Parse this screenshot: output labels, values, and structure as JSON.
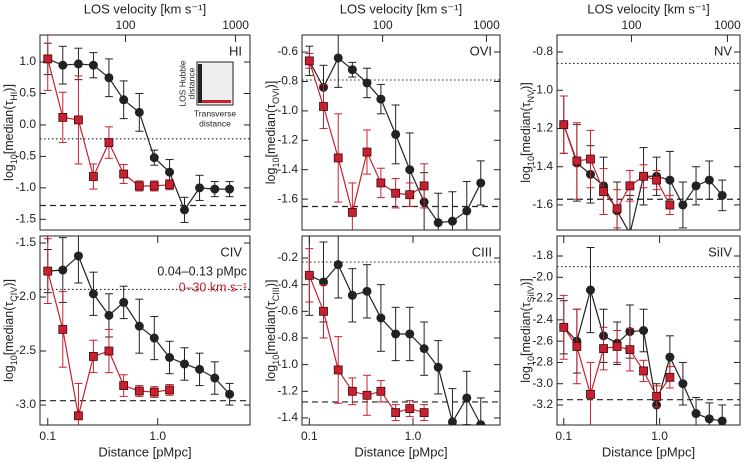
{
  "chart_data": [
    {
      "type": "line",
      "ion": "HI",
      "ylabel": [
        "log",
        "10",
        "[median(τ",
        "HI",
        ")]"
      ],
      "x2label": "LOS velocity [km s⁻¹]",
      "x2lim": [
        16.7,
        1352
      ],
      "x2ticks": [
        100,
        1000
      ],
      "xlim": [
        0.085,
        6.9
      ],
      "xscale": "log",
      "ylim": [
        -1.67,
        1.43
      ],
      "yticks": [
        {
          "value": 1,
          "label": "1.0"
        },
        0.5,
        {
          "value": 0,
          "label": "0.0"
        },
        -0.5,
        {
          "value": -1,
          "label": "-1.0"
        },
        -1.5
      ],
      "hlines": [
        {
          "value": -0.22,
          "style": "dotted"
        },
        {
          "value": -1.28,
          "style": "dashed"
        }
      ],
      "inset": {
        "ylabel": [
          "LOS Hubble",
          "distance"
        ],
        "xlabel": [
          "Transverse",
          "distance"
        ]
      },
      "series": [
        {
          "color": "#222222",
          "marker": "circle",
          "x": [
            0.1,
            0.137,
            0.19,
            0.26,
            0.36,
            0.49,
            0.68,
            0.93,
            1.28,
            1.75,
            2.4,
            3.3,
            4.5
          ],
          "values": [
            1.05,
            0.95,
            0.97,
            0.95,
            0.75,
            0.4,
            0.2,
            -0.52,
            -0.75,
            -1.35,
            -1.0,
            -1.02,
            -1.02
          ],
          "errors": [
            0.25,
            0.3,
            0.25,
            0.2,
            0.3,
            0.3,
            0.3,
            0.12,
            0.2,
            0.2,
            0.2,
            0.12,
            0.12
          ]
        },
        {
          "color": "#c8202f",
          "marker": "square",
          "x": [
            0.1,
            0.137,
            0.19,
            0.26,
            0.36,
            0.49,
            0.68,
            0.93,
            1.28
          ],
          "values": [
            1.05,
            0.12,
            0.08,
            -0.82,
            -0.28,
            -0.78,
            -0.97,
            -0.97,
            -0.95
          ],
          "errors": [
            0.5,
            0.4,
            0.7,
            0.2,
            0.25,
            0.15,
            0.08,
            0.08,
            0.08
          ]
        }
      ]
    },
    {
      "type": "line",
      "ion": "OVI",
      "ylabel": [
        "log",
        "10",
        "[median(τ",
        "OVI",
        ")]"
      ],
      "x2label": "LOS velocity [km s⁻¹]",
      "x2lim": [
        16.7,
        1352
      ],
      "x2ticks": [
        100,
        1000
      ],
      "xlim": [
        0.085,
        6.9
      ],
      "xscale": "log",
      "ylim": [
        -1.81,
        -0.484
      ],
      "yticks": [
        -0.6,
        -0.8,
        {
          "value": -1,
          "label": "-1.0"
        },
        -1.2,
        -1.4,
        -1.6
      ],
      "hlines": [
        {
          "value": -0.79,
          "style": "dotted"
        },
        {
          "value": -1.65,
          "style": "dashed"
        }
      ],
      "series": [
        {
          "color": "#222222",
          "marker": "circle",
          "x": [
            0.1,
            0.137,
            0.19,
            0.26,
            0.36,
            0.49,
            0.68,
            0.93,
            1.28,
            1.75,
            2.4,
            3.3,
            4.5
          ],
          "values": [
            -0.66,
            -0.84,
            -0.64,
            -0.72,
            -0.81,
            -0.92,
            -1.16,
            -1.4,
            -1.62,
            -1.76,
            -1.75,
            -1.68,
            -1.49
          ],
          "errors": [
            0.1,
            0.15,
            0.2,
            0.05,
            0.1,
            0.1,
            0.2,
            0.25,
            0.2,
            0.2,
            0.2,
            0.2,
            0.15
          ]
        },
        {
          "color": "#c8202f",
          "marker": "square",
          "x": [
            0.1,
            0.137,
            0.19,
            0.26,
            0.36,
            0.49,
            0.68,
            0.93,
            1.28
          ],
          "values": [
            -0.66,
            -0.97,
            -1.32,
            -1.69,
            -1.28,
            -1.49,
            -1.56,
            -1.57,
            -1.51
          ],
          "errors": [
            0.05,
            0.15,
            0.3,
            0.2,
            0.15,
            0.1,
            0.1,
            0.08,
            0.15
          ]
        }
      ]
    },
    {
      "type": "line",
      "ion": "NV",
      "ylabel": [
        "log",
        "10",
        "[median(τ",
        "NV",
        ")]"
      ],
      "x2label": "LOS velocity [km s⁻¹]",
      "x2lim": [
        16.7,
        1352
      ],
      "x2ticks": [
        100,
        1000
      ],
      "xlim": [
        0.085,
        6.9
      ],
      "xscale": "log",
      "ylim": [
        -1.731,
        -0.711
      ],
      "yticks": [
        -0.8,
        {
          "value": -1,
          "label": "-1.0"
        },
        -1.2,
        -1.4,
        -1.6
      ],
      "hlines": [
        {
          "value": -0.86,
          "style": "dotted"
        },
        {
          "value": -1.57,
          "style": "dashed"
        }
      ],
      "series": [
        {
          "color": "#222222",
          "marker": "circle",
          "x": [
            0.1,
            0.137,
            0.19,
            0.26,
            0.36,
            0.49,
            0.68,
            0.93,
            1.28,
            1.75,
            2.4,
            3.3,
            4.5
          ],
          "values": [
            -1.18,
            -1.38,
            -1.44,
            -1.5,
            -1.63,
            -1.75,
            -1.45,
            -1.45,
            -1.47,
            -1.6,
            -1.5,
            -1.47,
            -1.55
          ],
          "errors": [
            0.15,
            0.2,
            0.15,
            0.15,
            0.15,
            0.2,
            0.15,
            0.1,
            0.15,
            0.12,
            0.1,
            0.1,
            0.08
          ]
        },
        {
          "color": "#c8202f",
          "marker": "square",
          "x": [
            0.1,
            0.137,
            0.19,
            0.26,
            0.36,
            0.49,
            0.68,
            0.93,
            1.28
          ],
          "values": [
            -1.18,
            -1.37,
            -1.36,
            -1.53,
            -1.62,
            -1.5,
            -1.45,
            -1.47,
            -1.6
          ],
          "errors": [
            0.15,
            0.2,
            0.15,
            0.12,
            0.1,
            0.08,
            0.06,
            0.05,
            0.05
          ]
        }
      ]
    },
    {
      "type": "line",
      "ion": "CIV",
      "ylabel": [
        "log",
        "10",
        "[median(τ",
        "CIV",
        ")]"
      ],
      "xlabel": "Distance [pMpc]",
      "xlim": [
        0.085,
        6.9
      ],
      "xscale": "log",
      "xticks": [
        0.1,
        {
          "value": 1,
          "label": "1.0"
        }
      ],
      "ylim": [
        -3.185,
        -1.435
      ],
      "yticks": [
        -1.5,
        {
          "value": -2,
          "label": "-2.0"
        },
        -2.5,
        {
          "value": -3,
          "label": "-3.0"
        }
      ],
      "hlines": [
        {
          "value": -1.93,
          "style": "dotted"
        },
        {
          "value": -2.96,
          "style": "dashed"
        }
      ],
      "series": [
        {
          "name": "0.04–0.13 pMpc",
          "color": "#222222",
          "marker": "circle",
          "x": [
            0.1,
            0.137,
            0.19,
            0.26,
            0.36,
            0.49,
            0.68,
            0.93,
            1.28,
            1.75,
            2.4,
            3.3,
            4.5
          ],
          "values": [
            -1.76,
            -1.75,
            -1.62,
            -1.97,
            -2.17,
            -2.05,
            -2.27,
            -2.38,
            -2.56,
            -2.62,
            -2.67,
            -2.75,
            -2.9
          ],
          "errors": [
            0.2,
            0.3,
            0.25,
            0.2,
            0.2,
            0.15,
            0.25,
            0.2,
            0.15,
            0.15,
            0.15,
            0.15,
            0.1
          ]
        },
        {
          "name": "0–30 km s⁻¹",
          "color": "#c8202f",
          "marker": "square",
          "x": [
            0.1,
            0.137,
            0.19,
            0.26,
            0.36,
            0.49,
            0.68,
            0.93,
            1.28
          ],
          "values": [
            -1.76,
            -2.3,
            -3.1,
            -2.55,
            -2.5,
            -2.82,
            -2.87,
            -2.88,
            -2.86
          ],
          "errors": [
            0.3,
            0.35,
            0.3,
            0.15,
            0.2,
            0.1,
            0.05,
            0.05,
            0.05
          ]
        }
      ]
    },
    {
      "type": "line",
      "ion": "CIII",
      "ylabel": [
        "log",
        "10",
        "[median(τ",
        "CIII",
        ")]"
      ],
      "xlabel": "Distance [pMpc]",
      "xlim": [
        0.085,
        6.9
      ],
      "xscale": "log",
      "xticks": [
        0.1,
        {
          "value": 1,
          "label": "1.0"
        }
      ],
      "ylim": [
        -1.453,
        -0.035
      ],
      "yticks": [
        -0.2,
        -0.4,
        -0.6,
        -0.8,
        {
          "value": -1,
          "label": "-1.0"
        },
        -1.2,
        -1.4
      ],
      "hlines": [
        {
          "value": -0.23,
          "style": "dotted"
        },
        {
          "value": -1.28,
          "style": "dashed"
        }
      ],
      "series": [
        {
          "color": "#222222",
          "marker": "circle",
          "x": [
            0.1,
            0.137,
            0.19,
            0.26,
            0.36,
            0.49,
            0.68,
            0.93,
            1.28,
            1.75,
            2.4,
            3.3,
            4.5
          ],
          "values": [
            -0.33,
            -0.38,
            -0.25,
            -0.48,
            -0.45,
            -0.65,
            -0.77,
            -0.77,
            -0.88,
            -1.02,
            -1.43,
            -1.25,
            -1.45
          ],
          "errors": [
            0.3,
            0.3,
            0.25,
            0.2,
            0.2,
            0.25,
            0.2,
            0.2,
            0.2,
            0.2,
            0.25,
            0.2,
            0.2
          ]
        },
        {
          "color": "#c8202f",
          "marker": "square",
          "x": [
            0.1,
            0.137,
            0.19,
            0.26,
            0.36,
            0.49,
            0.68,
            0.93,
            1.28
          ],
          "values": [
            -0.33,
            -0.6,
            -1.04,
            -1.2,
            -1.23,
            -1.2,
            -1.36,
            -1.33,
            -1.36
          ],
          "errors": [
            0.2,
            0.2,
            0.25,
            0.1,
            0.15,
            0.08,
            0.06,
            0.06,
            0.06
          ]
        }
      ]
    },
    {
      "type": "line",
      "ion": "SiIV",
      "ylabel": [
        "log",
        "10",
        "[median(τ",
        "SiIV",
        ")]"
      ],
      "xlabel": "Distance [pMpc]",
      "xlim": [
        0.085,
        6.9
      ],
      "xscale": "log",
      "xticks": [
        0.1,
        {
          "value": 1,
          "label": "1.0"
        }
      ],
      "ylim": [
        -3.388,
        -1.612
      ],
      "yticks": [
        -1.8,
        {
          "value": -2,
          "label": "-2.0"
        },
        -2.2,
        -2.4,
        -2.6,
        -2.8,
        {
          "value": -3,
          "label": "-3.0"
        },
        -3.2
      ],
      "hlines": [
        {
          "value": -1.9,
          "style": "dotted"
        },
        {
          "value": -3.15,
          "style": "dashed"
        }
      ],
      "series": [
        {
          "color": "#222222",
          "marker": "circle",
          "x": [
            0.1,
            0.137,
            0.19,
            0.26,
            0.36,
            0.49,
            0.68,
            0.93,
            1.28,
            1.75,
            2.4,
            3.3,
            4.5
          ],
          "values": [
            -2.47,
            -2.6,
            -2.12,
            -2.55,
            -2.62,
            -2.51,
            -2.5,
            -3.2,
            -2.75,
            -3.0,
            -3.28,
            -3.33,
            -3.35
          ],
          "errors": [
            0.25,
            0.3,
            0.4,
            0.25,
            0.2,
            0.25,
            0.2,
            0.2,
            0.2,
            0.2,
            0.15,
            0.15,
            0.15
          ]
        },
        {
          "color": "#c8202f",
          "marker": "square",
          "x": [
            0.1,
            0.137,
            0.19,
            0.26,
            0.36,
            0.49,
            0.68,
            0.93,
            1.28
          ],
          "values": [
            -2.47,
            -2.65,
            -3.1,
            -2.67,
            -2.65,
            -2.68,
            -2.88,
            -3.12,
            -2.94
          ],
          "errors": [
            0.3,
            0.35,
            0.3,
            0.2,
            0.15,
            0.2,
            0.1,
            0.1,
            0.1
          ]
        }
      ]
    }
  ]
}
